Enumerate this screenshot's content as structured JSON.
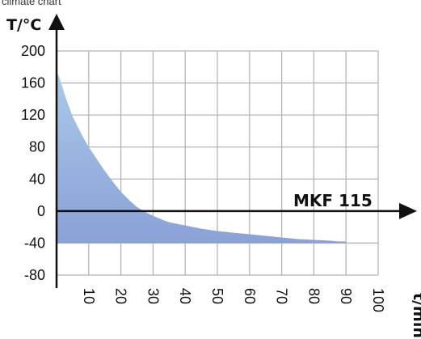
{
  "caption": "climate chart",
  "chart_data": {
    "type": "area",
    "title": "",
    "xlabel": "t/min",
    "ylabel": "T/°C",
    "xlim": [
      0,
      100
    ],
    "ylim": [
      -80,
      200
    ],
    "xticks": [
      "10",
      "20",
      "30",
      "40",
      "50",
      "60",
      "70",
      "80",
      "90",
      "100"
    ],
    "yticks": [
      "200",
      "160",
      "120",
      "80",
      "40",
      "0",
      "-40",
      "-80"
    ],
    "grid": true,
    "annotation": "MKF 115",
    "series": [
      {
        "x": [
          0,
          1,
          3,
          5,
          8,
          10,
          13,
          15,
          18,
          20,
          23,
          25,
          27,
          30,
          33,
          35,
          40,
          45,
          50,
          55,
          60,
          65,
          70,
          75,
          80,
          85,
          88,
          90
        ],
        "y": [
          175,
          165,
          140,
          118,
          94,
          80,
          62,
          50,
          34,
          24,
          12,
          5,
          0,
          -6,
          -11,
          -14,
          -18,
          -22,
          -25,
          -27,
          -29,
          -31,
          -33,
          -35,
          -36,
          -37,
          -38,
          -38
        ]
      }
    ],
    "colors": {
      "fill_top": "#a9c9e8",
      "fill_bottom": "#8aa1d6",
      "grid": "#b5b5b5",
      "axis": "#111111"
    }
  }
}
